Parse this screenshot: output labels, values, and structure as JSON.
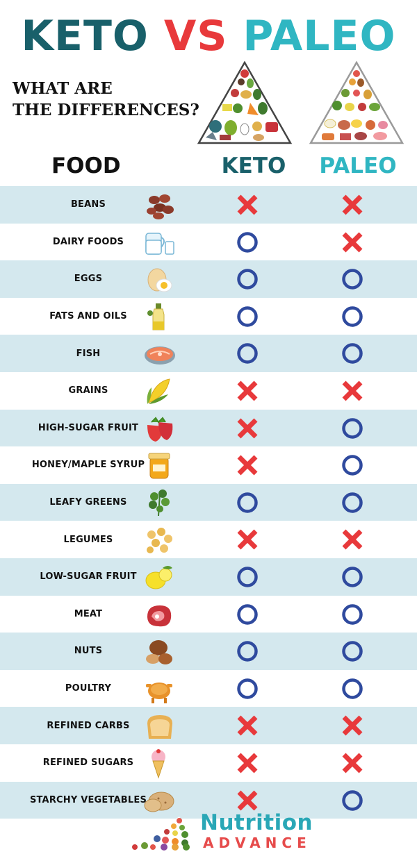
{
  "title": {
    "word1": "KETO",
    "word2": "VS",
    "word3": "PALEO"
  },
  "subtitle": {
    "line1": "WHAT ARE",
    "line2": "THE DIFFERENCES?"
  },
  "columns": {
    "food": "FOOD",
    "keto": "KETO",
    "paleo": "PALEO"
  },
  "colors": {
    "keto": "#19606a",
    "vs": "#e8393b",
    "paleo": "#30b6c2",
    "row_shade": "#d4e8ee",
    "cross": "#e8393b",
    "circle": "#2f4a9e"
  },
  "legend_semantics": {
    "allowed": "circle-icon",
    "not_allowed": "cross-icon"
  },
  "rows": [
    {
      "food": "BEANS",
      "icon": "beans-icon",
      "keto": false,
      "paleo": false
    },
    {
      "food": "DAIRY FOODS",
      "icon": "milk-icon",
      "keto": true,
      "paleo": false
    },
    {
      "food": "EGGS",
      "icon": "egg-icon",
      "keto": true,
      "paleo": true
    },
    {
      "food": "FATS AND OILS",
      "icon": "oil-bottle-icon",
      "keto": true,
      "paleo": true
    },
    {
      "food": "FISH",
      "icon": "fish-steak-icon",
      "keto": true,
      "paleo": true
    },
    {
      "food": "GRAINS",
      "icon": "corn-icon",
      "keto": false,
      "paleo": false
    },
    {
      "food": "HIGH-SUGAR FRUIT",
      "icon": "strawberry-icon",
      "keto": false,
      "paleo": true
    },
    {
      "food": "HONEY/MAPLE SYRUP",
      "icon": "honey-jar-icon",
      "keto": false,
      "paleo": true
    },
    {
      "food": "LEAFY GREENS",
      "icon": "parsley-icon",
      "keto": true,
      "paleo": true
    },
    {
      "food": "LEGUMES",
      "icon": "chickpeas-icon",
      "keto": false,
      "paleo": false
    },
    {
      "food": "LOW-SUGAR FRUIT",
      "icon": "lemon-icon",
      "keto": true,
      "paleo": true
    },
    {
      "food": "MEAT",
      "icon": "steak-icon",
      "keto": true,
      "paleo": true
    },
    {
      "food": "NUTS",
      "icon": "hazelnut-icon",
      "keto": true,
      "paleo": true
    },
    {
      "food": "POULTRY",
      "icon": "roast-chicken-icon",
      "keto": true,
      "paleo": true
    },
    {
      "food": "REFINED CARBS",
      "icon": "bread-icon",
      "keto": false,
      "paleo": false
    },
    {
      "food": "REFINED SUGARS",
      "icon": "ice-cream-icon",
      "keto": false,
      "paleo": false
    },
    {
      "food": "STARCHY VEGETABLES",
      "icon": "potato-icon",
      "keto": false,
      "paleo": true
    }
  ],
  "brand": {
    "name": "Nutrition",
    "sub": "ADVANCE"
  }
}
